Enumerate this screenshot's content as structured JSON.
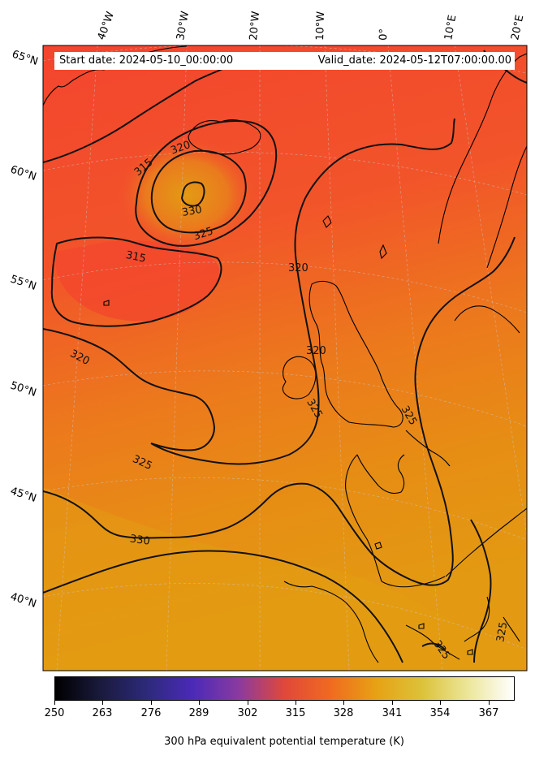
{
  "header": {
    "start_date": "Start date: 2024-05-10_00:00:00",
    "valid_date": "Valid_date: 2024-05-12T07:00:00.00"
  },
  "longitude_labels": [
    "40°W",
    "30°W",
    "20°W",
    "10°W",
    "0°",
    "10°E",
    "20°E"
  ],
  "latitude_labels": [
    "65°N",
    "60°N",
    "55°N",
    "50°N",
    "45°N",
    "40°N"
  ],
  "contour_labels": [
    "315",
    "320",
    "330",
    "325",
    "315",
    "320",
    "320",
    "320",
    "325",
    "325",
    "330",
    "325",
    "325",
    "325"
  ],
  "colorbar": {
    "ticks": [
      "250",
      "263",
      "276",
      "289",
      "302",
      "315",
      "328",
      "341",
      "354",
      "367"
    ],
    "title": "300 hPa equivalent potential temperature (K)",
    "colors": [
      "#000000",
      "#4b2ab8",
      "#f2452e",
      "#e7a214",
      "#ffffff"
    ]
  }
}
